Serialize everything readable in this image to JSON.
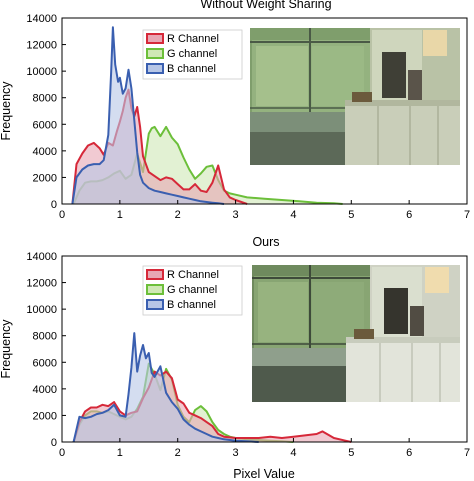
{
  "chart_data": [
    {
      "type": "area",
      "title": "Without Weight Sharing",
      "xlabel": "",
      "ylabel": "Frequency",
      "xlim": [
        0,
        7
      ],
      "ylim": [
        0,
        14000
      ],
      "xticks": [
        0,
        1,
        2,
        3,
        4,
        5,
        6,
        7
      ],
      "yticks": [
        0,
        2000,
        4000,
        6000,
        8000,
        10000,
        12000,
        14000
      ],
      "legend": "top-center",
      "inset_photo": true,
      "series": [
        {
          "name": "R Channel",
          "color": "#d62839",
          "fill": "#e8a7b4",
          "x": [
            0.18,
            0.25,
            0.35,
            0.45,
            0.55,
            0.65,
            0.72,
            0.8,
            0.88,
            0.95,
            1.0,
            1.05,
            1.1,
            1.15,
            1.2,
            1.25,
            1.3,
            1.35,
            1.4,
            1.5,
            1.6,
            1.7,
            1.8,
            1.9,
            2.0,
            2.1,
            2.2,
            2.3,
            2.4,
            2.5,
            2.6,
            2.7,
            2.8,
            2.9,
            3.0,
            3.1,
            3.2
          ],
          "y": [
            0,
            3000,
            3800,
            4400,
            4600,
            4200,
            3700,
            4600,
            4400,
            5500,
            6200,
            7000,
            8000,
            8600,
            7200,
            6600,
            7300,
            5800,
            3600,
            2400,
            2100,
            1800,
            2000,
            1900,
            1500,
            1100,
            1100,
            1500,
            1000,
            900,
            1600,
            2900,
            1100,
            500,
            300,
            150,
            0
          ]
        },
        {
          "name": "G channel",
          "color": "#6cbf3a",
          "fill": "#cfe8b5",
          "x": [
            0.2,
            0.3,
            0.4,
            0.5,
            0.6,
            0.7,
            0.8,
            0.9,
            1.0,
            1.1,
            1.2,
            1.3,
            1.4,
            1.5,
            1.55,
            1.6,
            1.7,
            1.8,
            1.9,
            2.0,
            2.1,
            2.2,
            2.3,
            2.4,
            2.5,
            2.6,
            2.7,
            2.8,
            2.9,
            3.0,
            3.2,
            3.5,
            3.8,
            4.1,
            4.4,
            4.7,
            4.85
          ],
          "y": [
            0,
            1000,
            1600,
            1700,
            1700,
            1800,
            2000,
            2300,
            2500,
            1900,
            2200,
            3800,
            2400,
            5300,
            5700,
            5800,
            5100,
            5800,
            5000,
            4500,
            3500,
            2600,
            1900,
            2300,
            2800,
            2900,
            1800,
            1000,
            800,
            700,
            500,
            400,
            300,
            200,
            100,
            50,
            0
          ]
        },
        {
          "name": "B channel",
          "color": "#3a5fb0",
          "fill": "#b7c6e6",
          "x": [
            0.18,
            0.25,
            0.35,
            0.45,
            0.55,
            0.65,
            0.72,
            0.8,
            0.85,
            0.88,
            0.92,
            0.97,
            1.0,
            1.05,
            1.1,
            1.15,
            1.2,
            1.25,
            1.3,
            1.35,
            1.4,
            1.5,
            1.6,
            1.7,
            1.8,
            1.9,
            2.0,
            2.1,
            2.2,
            2.3,
            2.4,
            2.5,
            2.6,
            2.7,
            2.8
          ],
          "y": [
            0,
            2000,
            2600,
            2900,
            3000,
            3000,
            3300,
            5200,
            10000,
            13300,
            10500,
            9200,
            9500,
            8300,
            8700,
            10100,
            8700,
            6300,
            3900,
            2200,
            1600,
            1200,
            1000,
            900,
            800,
            700,
            600,
            500,
            400,
            300,
            200,
            150,
            100,
            50,
            0
          ]
        }
      ]
    },
    {
      "type": "area",
      "title": "Ours",
      "xlabel": "Pixel Value",
      "ylabel": "Frequency",
      "xlim": [
        0,
        7
      ],
      "ylim": [
        0,
        14000
      ],
      "xticks": [
        0,
        1,
        2,
        3,
        4,
        5,
        6,
        7
      ],
      "yticks": [
        0,
        2000,
        4000,
        6000,
        8000,
        10000,
        12000,
        14000
      ],
      "legend": "top-center",
      "inset_photo": true,
      "series": [
        {
          "name": "R Channel",
          "color": "#d62839",
          "fill": "#e8a7b4",
          "x": [
            0.2,
            0.3,
            0.4,
            0.5,
            0.6,
            0.7,
            0.8,
            0.9,
            1.0,
            1.1,
            1.2,
            1.3,
            1.4,
            1.5,
            1.6,
            1.7,
            1.8,
            1.9,
            2.0,
            2.1,
            2.2,
            2.3,
            2.4,
            2.5,
            2.6,
            2.7,
            2.8,
            3.0,
            3.2,
            3.4,
            3.6,
            3.8,
            4.0,
            4.2,
            4.4,
            4.5,
            4.7,
            4.9,
            5.0
          ],
          "y": [
            0,
            1500,
            2300,
            2600,
            2600,
            2800,
            2700,
            3000,
            2300,
            2000,
            2200,
            2300,
            3300,
            4100,
            5300,
            5000,
            5300,
            4800,
            3200,
            2900,
            2200,
            2000,
            1800,
            1500,
            1200,
            600,
            400,
            300,
            300,
            300,
            400,
            300,
            400,
            500,
            600,
            800,
            300,
            100,
            0
          ]
        },
        {
          "name": "G channel",
          "color": "#6cbf3a",
          "fill": "#cfe8b5",
          "x": [
            0.2,
            0.3,
            0.4,
            0.5,
            0.6,
            0.7,
            0.8,
            0.9,
            1.0,
            1.1,
            1.2,
            1.3,
            1.4,
            1.5,
            1.6,
            1.7,
            1.8,
            1.9,
            2.0,
            2.1,
            2.2,
            2.3,
            2.4,
            2.5,
            2.6,
            2.7,
            2.8,
            2.9,
            3.0,
            3.2,
            3.4,
            3.6,
            3.8,
            4.0
          ],
          "y": [
            0,
            1300,
            2000,
            2300,
            2300,
            2200,
            2300,
            2100,
            1900,
            1700,
            1900,
            2500,
            3400,
            5900,
            5100,
            3900,
            5500,
            4700,
            2800,
            1900,
            1500,
            2400,
            2700,
            2300,
            1500,
            900,
            600,
            400,
            300,
            200,
            150,
            100,
            50,
            0
          ]
        },
        {
          "name": "B channel",
          "color": "#3a5fb0",
          "fill": "#b7c6e6",
          "x": [
            0.2,
            0.3,
            0.4,
            0.5,
            0.6,
            0.7,
            0.8,
            0.9,
            1.0,
            1.1,
            1.15,
            1.2,
            1.25,
            1.3,
            1.35,
            1.4,
            1.45,
            1.5,
            1.55,
            1.6,
            1.7,
            1.8,
            1.9,
            2.0,
            2.1,
            2.2,
            2.3,
            2.4,
            2.5,
            2.6,
            2.7,
            2.8,
            3.0,
            3.2,
            3.4
          ],
          "y": [
            0,
            1900,
            1800,
            1900,
            2100,
            2200,
            2400,
            2800,
            2000,
            1900,
            3600,
            5600,
            8200,
            5300,
            6500,
            7300,
            6300,
            6700,
            5200,
            4900,
            5700,
            3700,
            3000,
            2500,
            1700,
            1300,
            1000,
            800,
            600,
            400,
            300,
            200,
            100,
            50,
            0
          ]
        }
      ]
    }
  ]
}
